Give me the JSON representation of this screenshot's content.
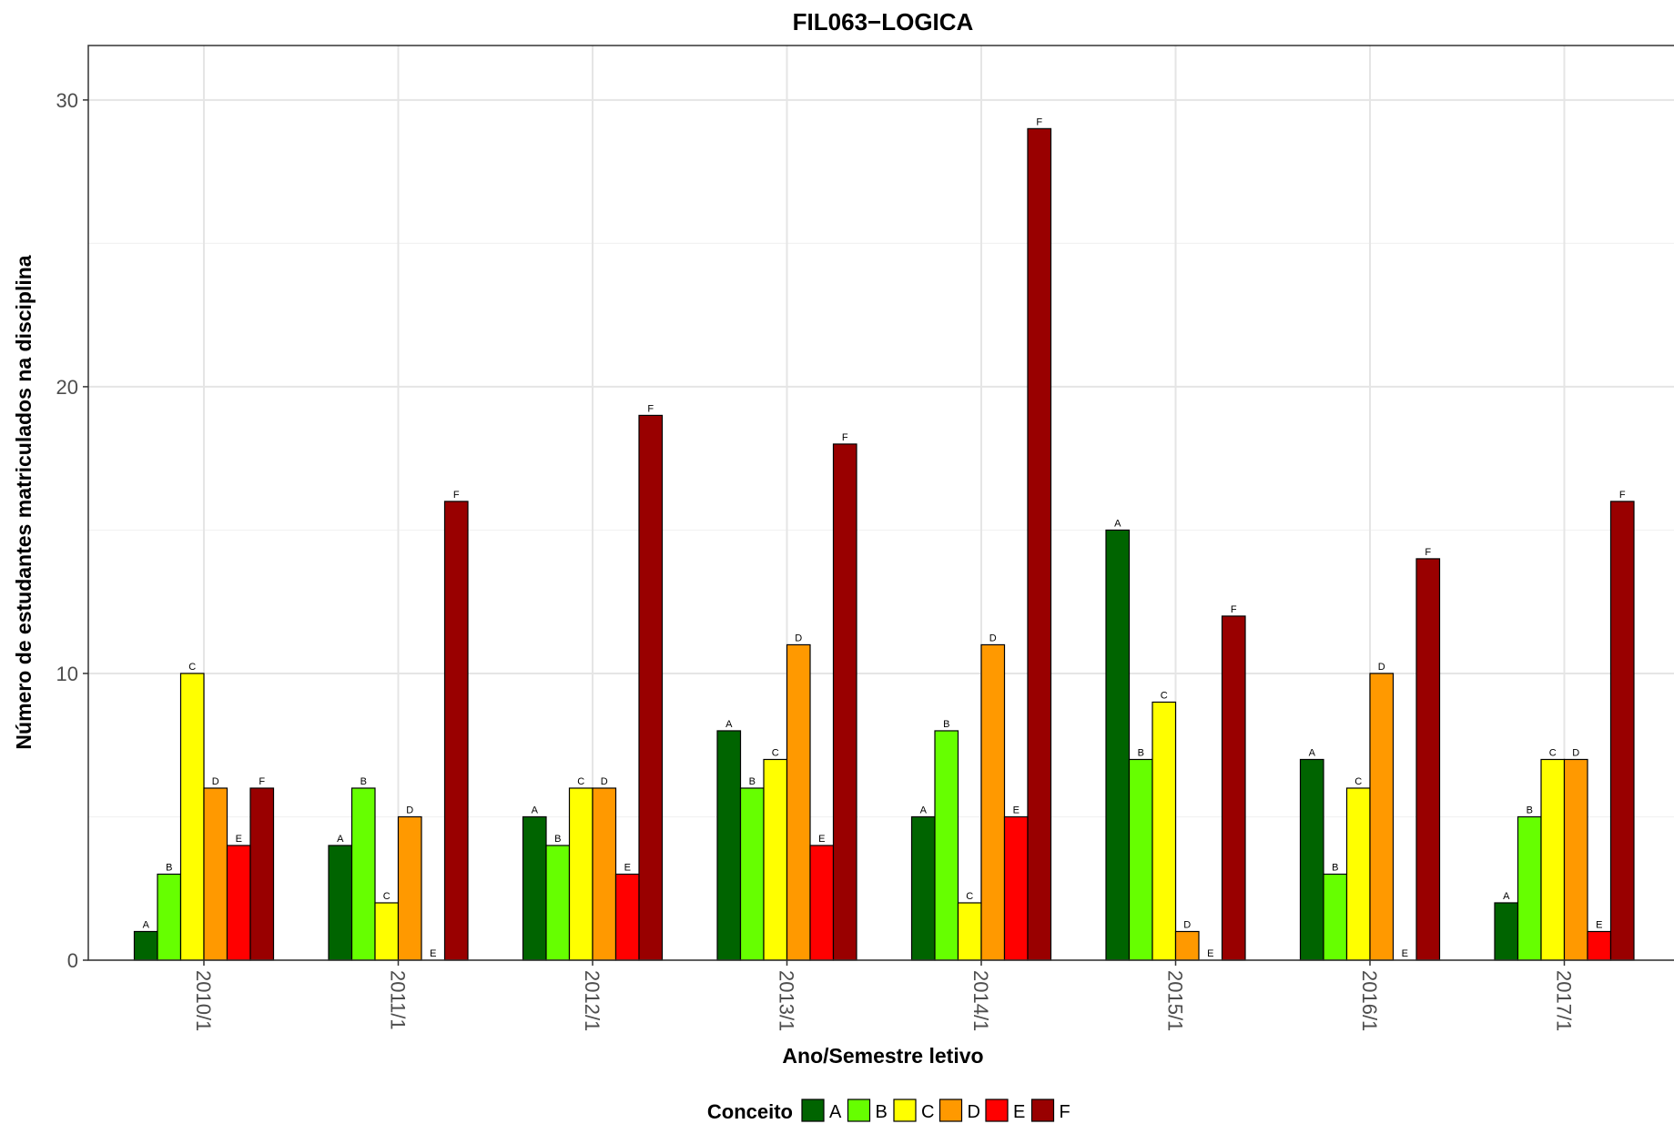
{
  "chart_data": {
    "type": "bar",
    "title": "FIL063−LOGICA",
    "xlabel": "Ano/Semestre letivo",
    "ylabel": "Número de estudantes matriculados na disciplina",
    "categories": [
      "2010/1",
      "2011/1",
      "2012/1",
      "2013/1",
      "2014/1",
      "2015/1",
      "2016/1",
      "2017/1"
    ],
    "series": [
      {
        "name": "A",
        "color": "#006400",
        "values": [
          1,
          4,
          5,
          8,
          5,
          15,
          7,
          2
        ]
      },
      {
        "name": "B",
        "color": "#66ff00",
        "values": [
          3,
          6,
          4,
          6,
          8,
          7,
          3,
          5
        ]
      },
      {
        "name": "C",
        "color": "#ffff00",
        "values": [
          10,
          2,
          6,
          7,
          2,
          9,
          6,
          7
        ]
      },
      {
        "name": "D",
        "color": "#ff9900",
        "values": [
          6,
          5,
          6,
          11,
          11,
          1,
          10,
          7
        ]
      },
      {
        "name": "E",
        "color": "#ff0000",
        "values": [
          4,
          0,
          3,
          4,
          5,
          0,
          0,
          1
        ]
      },
      {
        "name": "F",
        "color": "#990000",
        "values": [
          6,
          16,
          19,
          18,
          29,
          12,
          14,
          16
        ]
      }
    ],
    "ylim": [
      0,
      31.9
    ],
    "yticks": [
      0,
      10,
      20,
      30
    ],
    "grid": true,
    "legend": {
      "title": "Conceito",
      "position": "bottom"
    }
  }
}
